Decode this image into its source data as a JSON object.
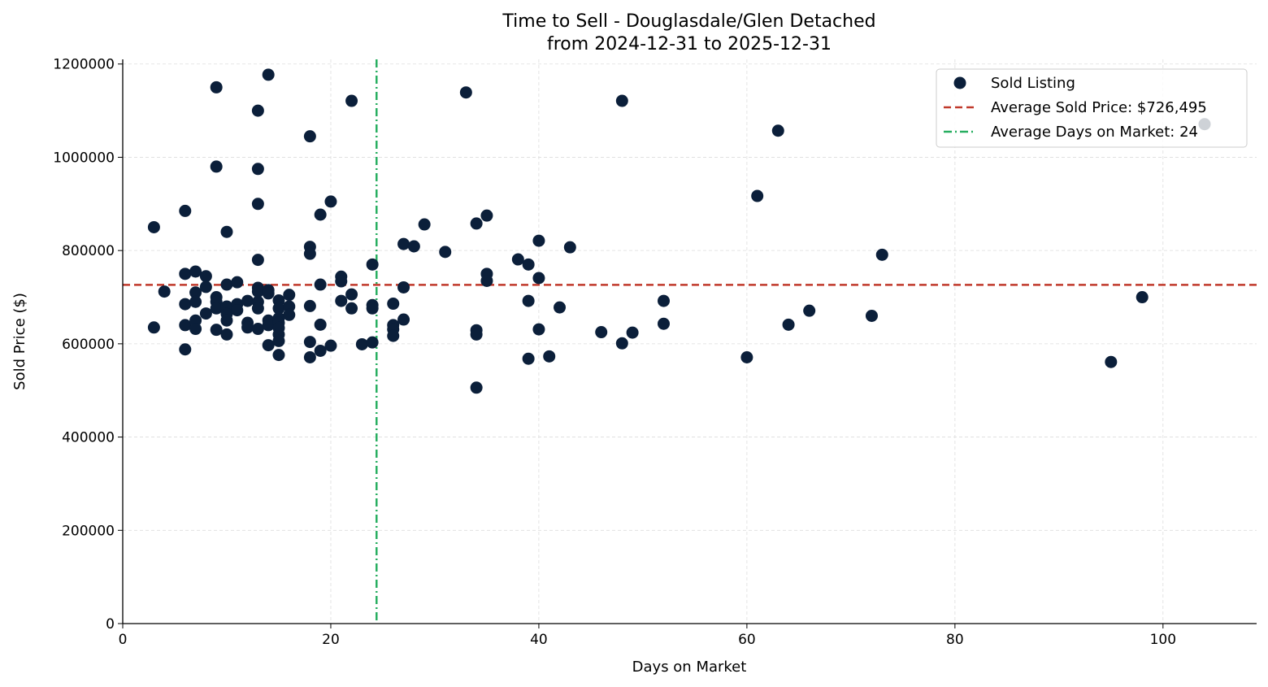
{
  "chart_data": {
    "type": "scatter",
    "title": "Time to Sell - Douglasdale/Glen Detached",
    "subtitle": "from 2024-12-31 to 2025-12-31",
    "xlabel": "Days on Market",
    "ylabel": "Sold Price ($)",
    "xlim": [
      0,
      109
    ],
    "ylim": [
      0,
      1210000
    ],
    "xticks": [
      0,
      20,
      40,
      60,
      80,
      100
    ],
    "yticks": [
      0,
      200000,
      400000,
      600000,
      800000,
      1000000,
      1200000
    ],
    "grid": true,
    "legend_position": "top-right",
    "colors": {
      "points": "#0b1f3a",
      "avg_price": "#c0392b",
      "avg_days": "#27ae60"
    },
    "series": [
      {
        "name": "Sold Listing",
        "points": [
          [
            3,
            850000
          ],
          [
            3,
            635000
          ],
          [
            4,
            712000
          ],
          [
            6,
            885000
          ],
          [
            6,
            750000
          ],
          [
            6,
            685000
          ],
          [
            6,
            640000
          ],
          [
            6,
            588000
          ],
          [
            7,
            755000
          ],
          [
            7,
            710000
          ],
          [
            7,
            690000
          ],
          [
            7,
            650000
          ],
          [
            7,
            632000
          ],
          [
            8,
            745000
          ],
          [
            8,
            722000
          ],
          [
            8,
            665000
          ],
          [
            9,
            1150000
          ],
          [
            9,
            980000
          ],
          [
            9,
            700000
          ],
          [
            9,
            690000
          ],
          [
            9,
            676000
          ],
          [
            9,
            630000
          ],
          [
            10,
            840000
          ],
          [
            10,
            727000
          ],
          [
            10,
            680000
          ],
          [
            10,
            664000
          ],
          [
            10,
            650000
          ],
          [
            10,
            620000
          ],
          [
            11,
            732000
          ],
          [
            11,
            685000
          ],
          [
            11,
            672000
          ],
          [
            12,
            692000
          ],
          [
            12,
            645000
          ],
          [
            12,
            635000
          ],
          [
            13,
            1100000
          ],
          [
            13,
            975000
          ],
          [
            13,
            900000
          ],
          [
            13,
            780000
          ],
          [
            13,
            720000
          ],
          [
            13,
            712000
          ],
          [
            13,
            690000
          ],
          [
            13,
            676000
          ],
          [
            13,
            632000
          ],
          [
            14,
            1177000
          ],
          [
            14,
            715000
          ],
          [
            14,
            708000
          ],
          [
            14,
            650000
          ],
          [
            14,
            640000
          ],
          [
            14,
            597000
          ],
          [
            15,
            693000
          ],
          [
            15,
            676000
          ],
          [
            15,
            655000
          ],
          [
            15,
            645000
          ],
          [
            15,
            634000
          ],
          [
            15,
            620000
          ],
          [
            15,
            606000
          ],
          [
            15,
            576000
          ],
          [
            16,
            705000
          ],
          [
            16,
            680000
          ],
          [
            16,
            662000
          ],
          [
            18,
            1045000
          ],
          [
            18,
            808000
          ],
          [
            18,
            793000
          ],
          [
            18,
            681000
          ],
          [
            18,
            604000
          ],
          [
            18,
            571000
          ],
          [
            19,
            877000
          ],
          [
            19,
            727000
          ],
          [
            19,
            641000
          ],
          [
            19,
            585000
          ],
          [
            20,
            905000
          ],
          [
            20,
            596000
          ],
          [
            21,
            744000
          ],
          [
            21,
            734000
          ],
          [
            21,
            692000
          ],
          [
            22,
            1121000
          ],
          [
            22,
            706000
          ],
          [
            22,
            676000
          ],
          [
            23,
            599000
          ],
          [
            24,
            770000
          ],
          [
            24,
            683000
          ],
          [
            24,
            676000
          ],
          [
            24,
            603000
          ],
          [
            26,
            686000
          ],
          [
            26,
            640000
          ],
          [
            26,
            631000
          ],
          [
            26,
            617000
          ],
          [
            27,
            814000
          ],
          [
            27,
            721000
          ],
          [
            27,
            652000
          ],
          [
            28,
            809000
          ],
          [
            29,
            856000
          ],
          [
            31,
            797000
          ],
          [
            33,
            1139000
          ],
          [
            34,
            858000
          ],
          [
            34,
            629000
          ],
          [
            34,
            620000
          ],
          [
            34,
            506000
          ],
          [
            35,
            875000
          ],
          [
            35,
            750000
          ],
          [
            35,
            735000
          ],
          [
            38,
            781000
          ],
          [
            39,
            770000
          ],
          [
            39,
            692000
          ],
          [
            39,
            568000
          ],
          [
            40,
            821000
          ],
          [
            40,
            741000
          ],
          [
            40,
            631000
          ],
          [
            41,
            573000
          ],
          [
            42,
            678000
          ],
          [
            43,
            807000
          ],
          [
            46,
            625000
          ],
          [
            48,
            1121000
          ],
          [
            48,
            601000
          ],
          [
            49,
            624000
          ],
          [
            52,
            692000
          ],
          [
            52,
            643000
          ],
          [
            60,
            571000
          ],
          [
            61,
            917000
          ],
          [
            63,
            1057000
          ],
          [
            64,
            641000
          ],
          [
            66,
            671000
          ],
          [
            72,
            660000
          ],
          [
            73,
            791000
          ],
          [
            95,
            561000
          ],
          [
            98,
            700000
          ],
          [
            104,
            1071000
          ]
        ]
      }
    ],
    "avg_price": 726495,
    "avg_days": 24.4,
    "legend": [
      "Sold Listing",
      "Average Sold Price: $726,495",
      "Average Days on Market: 24"
    ]
  }
}
